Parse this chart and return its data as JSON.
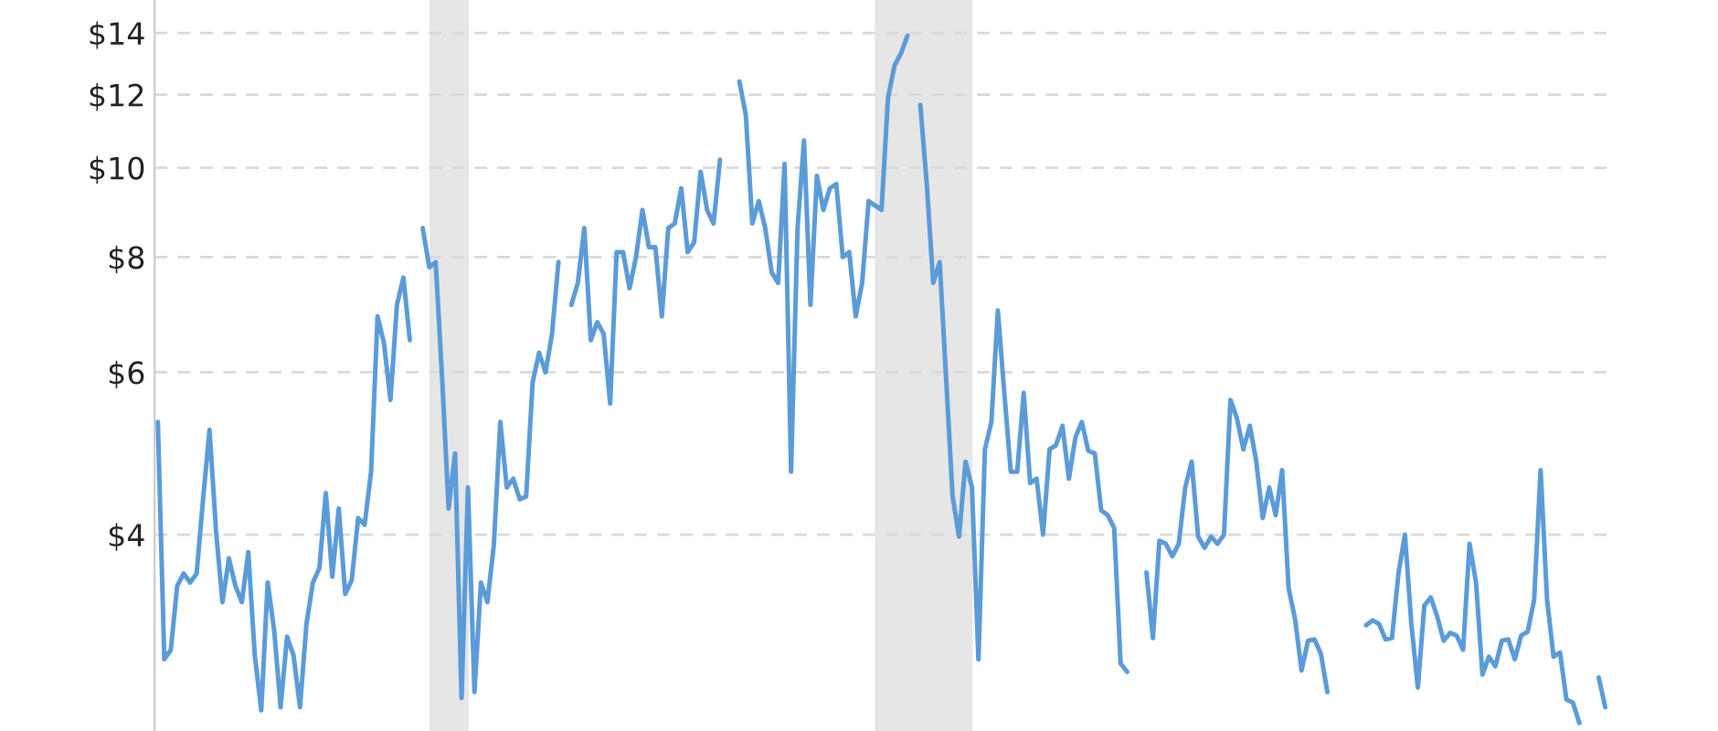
{
  "chart_data": {
    "type": "line",
    "categories": [
      null,
      null,
      null,
      null,
      null,
      null,
      null,
      null,
      null,
      null,
      null,
      null,
      null,
      null,
      null,
      null,
      null,
      null,
      null,
      null,
      null,
      null,
      null,
      null,
      null,
      null,
      null,
      null,
      null,
      null,
      null,
      null,
      null,
      null,
      null,
      null,
      null,
      null,
      null,
      null,
      null,
      null,
      null,
      null,
      null,
      null,
      null,
      null,
      null,
      null,
      null,
      null,
      null,
      null,
      null,
      null,
      null,
      null,
      null,
      null,
      null,
      null,
      null,
      null,
      null,
      null,
      null,
      null,
      null,
      null,
      null,
      null,
      null,
      null,
      null,
      null,
      null,
      null,
      null,
      null,
      null,
      null,
      null,
      null,
      null,
      null,
      null,
      null,
      null,
      null,
      null,
      null,
      null,
      null,
      null,
      null,
      null,
      null,
      null,
      null,
      null,
      null,
      null,
      null,
      null,
      null,
      null,
      null,
      null,
      null,
      null,
      null,
      null,
      null,
      null,
      null,
      null,
      null,
      null,
      null,
      null,
      null,
      null,
      null,
      null,
      null,
      null,
      null,
      null,
      null,
      null,
      null,
      null,
      null,
      null,
      null,
      null,
      null,
      null,
      null,
      null,
      null,
      null,
      null,
      null,
      null,
      null,
      null,
      null,
      null,
      null,
      null,
      null,
      null,
      null,
      null,
      null,
      null,
      null,
      null,
      null,
      null,
      null,
      null,
      null,
      null,
      null,
      null,
      null,
      null,
      null,
      null,
      null,
      null,
      null,
      null,
      null,
      null,
      null,
      null,
      null,
      null,
      null,
      null,
      null,
      null,
      null,
      null,
      null,
      null,
      null,
      null,
      null,
      null,
      null,
      null,
      null,
      null,
      null,
      null,
      null,
      null,
      null,
      null,
      null,
      null,
      null,
      null,
      null,
      null,
      null,
      null,
      null,
      null,
      null,
      null,
      null,
      null,
      null,
      null,
      null,
      null,
      null,
      null,
      null,
      null
    ],
    "series": [
      {
        "color": "#5b9bd8",
        "values": [
          5.3,
          2.93,
          3.0,
          3.52,
          3.63,
          3.55,
          3.63,
          4.37,
          5.2,
          4.04,
          3.38,
          3.77,
          3.52,
          3.38,
          3.83,
          2.96,
          2.58,
          3.55,
          3.15,
          2.6,
          3.1,
          2.96,
          2.6,
          3.2,
          3.55,
          3.68,
          4.44,
          3.6,
          4.27,
          3.45,
          3.57,
          4.17,
          4.1,
          4.68,
          6.9,
          6.45,
          5.6,
          7.1,
          7.6,
          6.5,
          null,
          8.6,
          7.8,
          7.9,
          5.9,
          4.27,
          4.9,
          2.66,
          4.5,
          2.7,
          3.55,
          3.38,
          3.9,
          5.3,
          4.5,
          4.6,
          4.37,
          4.4,
          5.85,
          6.3,
          6.0,
          6.6,
          7.9,
          null,
          7.1,
          7.5,
          8.6,
          6.5,
          6.8,
          6.6,
          5.55,
          8.1,
          8.1,
          7.4,
          8.0,
          9.0,
          8.2,
          8.2,
          6.9,
          8.6,
          8.7,
          9.5,
          8.1,
          8.3,
          9.9,
          9.0,
          8.7,
          10.2,
          null,
          null,
          12.4,
          11.4,
          8.7,
          9.2,
          8.6,
          7.7,
          7.5,
          10.1,
          4.68,
          8.6,
          10.7,
          7.1,
          9.8,
          9.0,
          9.5,
          9.6,
          8.0,
          8.1,
          6.9,
          7.5,
          9.2,
          9.1,
          9.0,
          11.9,
          12.9,
          13.3,
          13.9,
          null,
          11.7,
          9.6,
          7.5,
          7.9,
          5.9,
          4.4,
          3.98,
          4.8,
          4.5,
          2.93,
          4.95,
          5.3,
          7.0,
          5.7,
          4.68,
          4.68,
          5.7,
          4.55,
          4.6,
          4.0,
          4.95,
          5.0,
          5.25,
          4.6,
          5.1,
          5.3,
          4.93,
          4.9,
          4.25,
          4.2,
          4.07,
          2.9,
          2.84,
          null,
          null,
          3.64,
          3.09,
          3.94,
          3.91,
          3.79,
          3.91,
          4.5,
          4.8,
          3.98,
          3.87,
          3.98,
          3.91,
          4.0,
          5.6,
          5.35,
          4.95,
          5.25,
          4.8,
          4.17,
          4.5,
          4.2,
          4.7,
          3.5,
          3.24,
          2.85,
          3.07,
          3.08,
          2.97,
          2.7,
          null,
          null,
          null,
          null,
          null,
          3.19,
          3.23,
          3.2,
          3.08,
          3.09,
          3.63,
          4.0,
          3.2,
          2.73,
          3.35,
          3.42,
          3.26,
          3.07,
          3.13,
          3.11,
          3.0,
          3.91,
          3.55,
          2.82,
          2.95,
          2.88,
          3.07,
          3.08,
          2.93,
          3.11,
          3.14,
          3.4,
          4.7,
          3.4,
          2.95,
          2.98,
          2.65,
          2.63,
          2.5,
          null,
          null,
          2.8,
          2.6,
          null
        ]
      }
    ],
    "log": true,
    "ylim": [
      2.45,
      15.2
    ],
    "yticks": [
      {
        "value": 4,
        "label": "$4"
      },
      {
        "value": 6,
        "label": "$6"
      },
      {
        "value": 8,
        "label": "$8"
      },
      {
        "value": 10,
        "label": "$10"
      },
      {
        "value": 12,
        "label": "$12"
      },
      {
        "value": 14,
        "label": "$14"
      }
    ],
    "grid": "y",
    "tick_labels": "y"
  }
}
